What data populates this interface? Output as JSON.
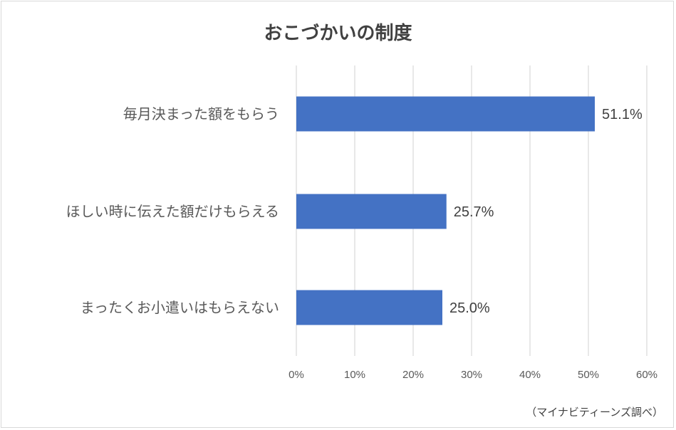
{
  "chart_data": {
    "type": "bar",
    "orientation": "horizontal",
    "title": "おこづかいの制度",
    "categories": [
      "毎月決まった額をもらう",
      "ほしい時に伝えた額だけもらえる",
      "まったくお小遣いはもらえない"
    ],
    "values": [
      51.1,
      25.7,
      25.0
    ],
    "data_labels": [
      "51.1%",
      "25.7%",
      "25.0%"
    ],
    "xlim": [
      0,
      60
    ],
    "x_ticks": [
      "0%",
      "10%",
      "20%",
      "30%",
      "40%",
      "50%",
      "60%"
    ],
    "grid": true,
    "bar_color": "#4472c4",
    "source_note": "（マイナビティーンズ調べ）"
  }
}
